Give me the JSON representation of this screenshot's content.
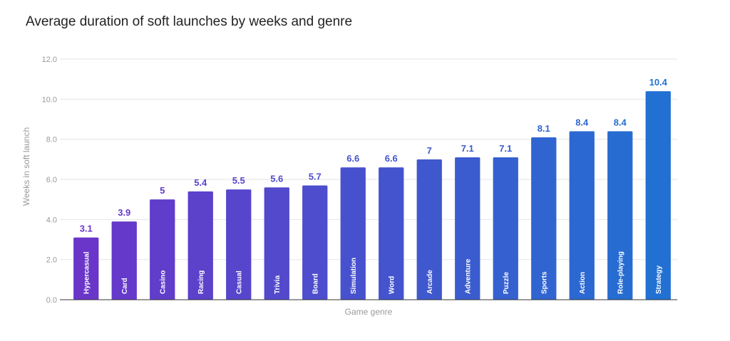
{
  "chart_data": {
    "type": "bar",
    "title": "Average duration of soft launches by weeks and genre",
    "xlabel": "Game genre",
    "ylabel": "Weeks in soft launch",
    "ylim": [
      0,
      12
    ],
    "yticks": [
      "0.0",
      "2.0",
      "4.0",
      "6.0",
      "8.0",
      "10.0",
      "12.0"
    ],
    "grid": true,
    "categories": [
      "Hypercasual",
      "Card",
      "Casino",
      "Racing",
      "Casual",
      "Trivia",
      "Board",
      "Simulation",
      "Word",
      "Arcade",
      "Adventure",
      "Puzzle",
      "Sports",
      "Action",
      "Role-playing",
      "Strategy"
    ],
    "values": [
      3.1,
      3.9,
      5,
      5.4,
      5.5,
      5.6,
      5.7,
      6.6,
      6.6,
      7,
      7.1,
      7.1,
      8.1,
      8.4,
      8.4,
      10.4
    ],
    "value_labels": [
      "3.1",
      "3.9",
      "5",
      "5.4",
      "5.5",
      "5.6",
      "5.7",
      "6.6",
      "6.6",
      "7",
      "7.1",
      "7.1",
      "8.1",
      "8.4",
      "8.4",
      "10.4"
    ],
    "colors": {
      "start": "#6a35c9",
      "end": "#2270d2",
      "grid": "#e6e6e6",
      "baseline": "#333333"
    }
  }
}
